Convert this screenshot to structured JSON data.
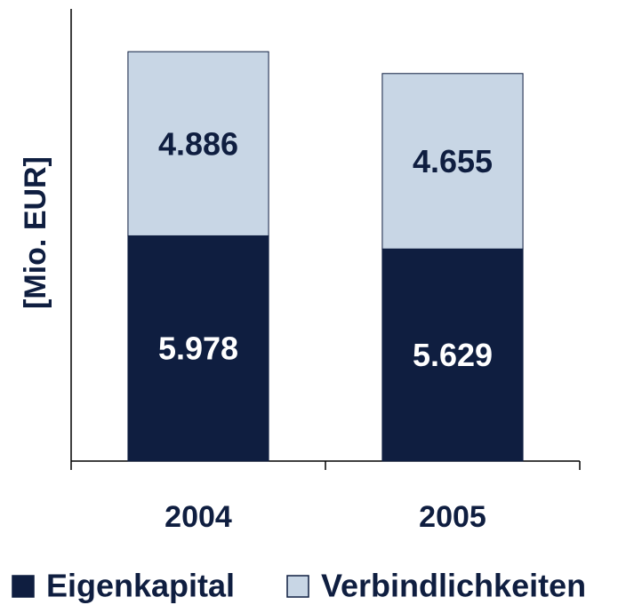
{
  "chart_data": {
    "type": "stacked-bar",
    "y_label": "[Mio. EUR]",
    "categories": [
      "2004",
      "2005"
    ],
    "series": [
      {
        "name": "Eigenkapital",
        "color": "#0f1e40",
        "values": [
          5978,
          5629
        ],
        "value_labels": [
          "5.978",
          "5.629"
        ]
      },
      {
        "name": "Verbindlichkeiten",
        "color": "#c8d6e5",
        "values": [
          4886,
          4655
        ],
        "value_labels": [
          "4.886",
          "4.655"
        ]
      }
    ],
    "ylim": [
      0,
      12000
    ],
    "legend": "bottom"
  }
}
